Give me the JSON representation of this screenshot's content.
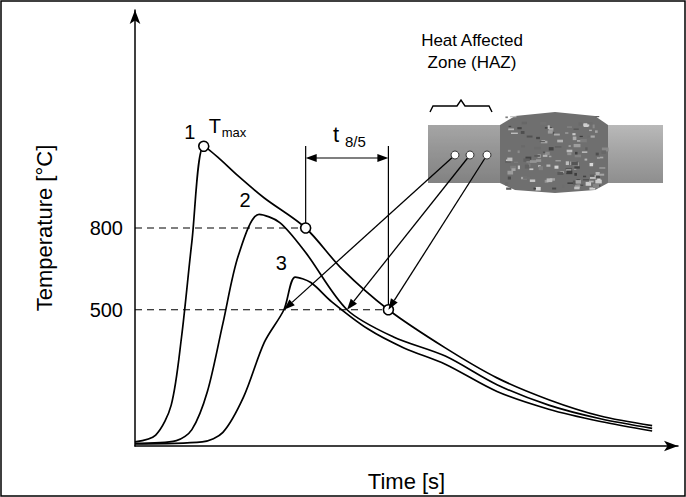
{
  "chart_data": {
    "type": "line",
    "x_label": "Time [s]",
    "y_label": "Temperature [°C]",
    "xlim": [
      0,
      105
    ],
    "ylim": [
      0,
      1600
    ],
    "xticks": [],
    "yticks": [
      500,
      800
    ],
    "tick_labels": "y",
    "grid": false,
    "series": [
      {
        "name": "1",
        "color": "#000000",
        "line_style": "solid",
        "x": [
          0,
          4,
          7,
          9,
          11,
          13.3,
          16,
          20,
          25,
          33,
          40,
          49,
          60,
          70,
          80,
          90,
          100
        ],
        "values": [
          15,
          40,
          150,
          400,
          750,
          1100,
          1060,
          990,
          910,
          800,
          650,
          500,
          360,
          250,
          170,
          110,
          75
        ]
      },
      {
        "name": "2",
        "color": "#000000",
        "line_style": "solid",
        "x": [
          0,
          8,
          11,
          14,
          17,
          20,
          24,
          28,
          33,
          41,
          50,
          60,
          70,
          80,
          90,
          100
        ],
        "values": [
          10,
          20,
          60,
          200,
          450,
          700,
          850,
          820,
          710,
          500,
          400,
          330,
          225,
          150,
          100,
          65
        ]
      },
      {
        "name": "3",
        "color": "#000000",
        "line_style": "solid",
        "x": [
          0,
          13,
          17,
          21,
          25,
          28.8,
          31,
          34,
          38,
          45,
          52,
          60,
          70,
          80,
          90,
          100
        ],
        "values": [
          8,
          15,
          50,
          180,
          380,
          500,
          620,
          600,
          530,
          430,
          360,
          300,
          200,
          135,
          90,
          55
        ]
      }
    ],
    "annotations": {
      "peak": {
        "text": "T",
        "subscript": "max"
      },
      "interval": {
        "text": "t",
        "subscript": "8/5"
      },
      "zone": [
        "Heat Affected",
        "Zone (HAZ)"
      ]
    }
  }
}
